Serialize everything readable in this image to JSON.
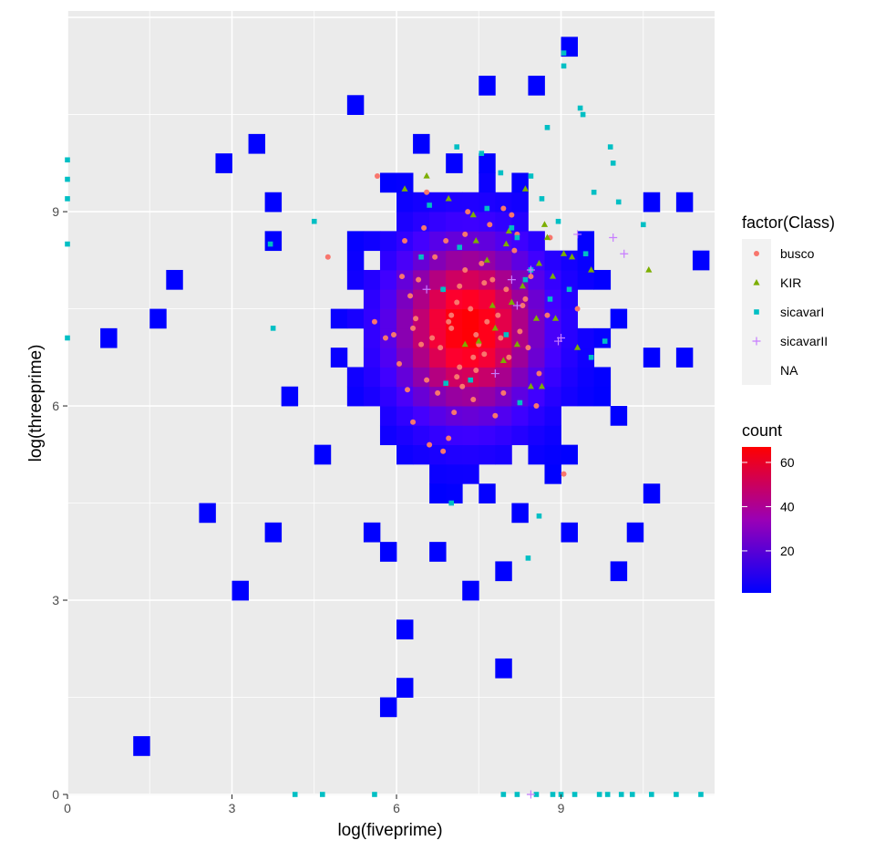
{
  "chart_data": {
    "type": "heatmap",
    "xlabel": "log(fiveprime)",
    "ylabel": "log(threeprime)",
    "xlim": [
      0,
      11.8
    ],
    "ylim": [
      0,
      12.1
    ],
    "x_ticks": [
      0,
      3,
      6,
      9
    ],
    "y_ticks": [
      0,
      3,
      6,
      9
    ],
    "grid": true,
    "panel_background": "#ebebeb",
    "bin_width": 0.3,
    "fill_scale": {
      "title": "count",
      "low_color": "#0000ff",
      "high_color": "#ff0000",
      "min": 1,
      "max": 67,
      "breaks": [
        20,
        40,
        60
      ]
    },
    "density_center": [
      7.3,
      7.2
    ],
    "density_spread": [
      0.95,
      0.95
    ],
    "isolated_bins": [
      [
        0.65,
        7.05
      ],
      [
        1.2,
        0.65
      ],
      [
        1.75,
        7.35
      ],
      [
        1.95,
        7.85
      ],
      [
        2.55,
        4.4
      ],
      [
        3.05,
        3.05
      ],
      [
        2.75,
        9.6
      ],
      [
        3.3,
        9.9
      ],
      [
        3.85,
        4.1
      ],
      [
        4.1,
        6.0
      ],
      [
        4.6,
        5.15
      ],
      [
        5.5,
        4.1
      ],
      [
        5.75,
        1.2
      ],
      [
        5.85,
        3.6
      ],
      [
        6.25,
        2.5
      ],
      [
        6.25,
        1.75
      ],
      [
        5.25,
        10.6
      ],
      [
        6.7,
        3.85
      ],
      [
        7.3,
        3.05
      ],
      [
        7.85,
        3.35
      ],
      [
        7.85,
        2.0
      ],
      [
        9.05,
        4.1
      ],
      [
        9.95,
        3.35
      ],
      [
        10.45,
        4.1
      ],
      [
        10.7,
        4.65
      ],
      [
        10.1,
        5.7
      ],
      [
        10.75,
        6.75
      ],
      [
        11.25,
        6.75
      ],
      [
        11.5,
        8.15
      ],
      [
        11.3,
        9.15
      ],
      [
        10.6,
        9.15
      ],
      [
        7.55,
        11.05
      ],
      [
        8.5,
        10.9
      ],
      [
        9.1,
        11.45
      ],
      [
        6.45,
        10.1
      ],
      [
        3.6,
        9.15
      ],
      [
        3.8,
        8.55
      ],
      [
        5.75,
        5.6
      ],
      [
        6.75,
        4.6
      ],
      [
        8.3,
        4.4
      ]
    ],
    "series": [
      {
        "name": "busco",
        "shape": "circle",
        "color": "#f8766d",
        "x": [
          5.65,
          4.75,
          7.65,
          6.25,
          7.1,
          7.45,
          6.8,
          7.0,
          7.25,
          6.1,
          8.0,
          7.9,
          8.4,
          7.15,
          6.55,
          6.3,
          7.35,
          7.6,
          8.15,
          6.05,
          6.9,
          7.7,
          7.2,
          7.5,
          6.4,
          8.3,
          8.6,
          6.7,
          7.05,
          7.8,
          7.4,
          6.95,
          6.6,
          5.6,
          5.8,
          6.2,
          8.1,
          8.8,
          7.95,
          6.5,
          7.3,
          7.55,
          6.85,
          7.1,
          6.35,
          6.75,
          8.25,
          7.85,
          6.15,
          8.45,
          9.3,
          9.05,
          6.3,
          6.85,
          7.75,
          8.05,
          7.45,
          6.65,
          7.95,
          6.45,
          7.15,
          8.35,
          8.55,
          7.25,
          6.95,
          7.6,
          7.0,
          6.55,
          8.2,
          5.95,
          8.75,
          7.4
        ],
        "y": [
          9.55,
          8.3,
          7.3,
          7.7,
          7.6,
          7.1,
          6.9,
          7.4,
          8.1,
          8.0,
          7.8,
          7.05,
          6.9,
          6.6,
          6.4,
          7.2,
          7.5,
          6.8,
          8.4,
          6.65,
          8.55,
          8.8,
          6.3,
          6.95,
          7.95,
          7.55,
          6.5,
          8.3,
          5.9,
          5.85,
          6.1,
          5.5,
          5.4,
          7.3,
          7.05,
          6.25,
          8.95,
          8.6,
          9.05,
          8.75,
          9.0,
          8.2,
          7.8,
          6.45,
          7.35,
          6.2,
          7.15,
          7.4,
          8.55,
          8.0,
          7.5,
          4.95,
          5.75,
          5.3,
          7.95,
          6.75,
          6.55,
          7.05,
          6.2,
          6.95,
          7.85,
          7.65,
          6.0,
          8.65,
          7.3,
          7.9,
          7.2,
          9.3,
          8.65,
          7.1,
          7.4,
          6.75
        ]
      },
      {
        "name": "KIR",
        "shape": "triangle",
        "color": "#7cae00",
        "x": [
          6.15,
          6.55,
          7.45,
          8.05,
          8.35,
          8.7,
          9.05,
          8.55,
          8.85,
          7.75,
          7.25,
          6.95,
          7.8,
          8.2,
          8.9,
          9.55,
          10.6,
          9.2,
          8.0,
          7.65,
          7.4,
          8.45,
          8.65,
          9.3,
          8.75,
          7.95,
          8.3,
          8.6,
          7.5,
          8.1
        ],
        "y": [
          9.35,
          9.55,
          8.55,
          8.7,
          9.35,
          8.8,
          8.35,
          7.35,
          8.0,
          7.55,
          6.95,
          9.2,
          7.2,
          6.95,
          7.35,
          8.1,
          8.1,
          8.3,
          8.5,
          8.25,
          8.95,
          6.3,
          6.3,
          6.9,
          8.6,
          6.7,
          7.85,
          8.2,
          7.0,
          7.6
        ]
      },
      {
        "name": "sicavarI",
        "shape": "square",
        "color": "#00bfc4",
        "x": [
          0,
          0,
          0,
          0,
          0,
          4.15,
          4.65,
          5.6,
          7.95,
          8.2,
          8.55,
          8.85,
          9.0,
          9.25,
          9.7,
          9.85,
          10.1,
          10.3,
          10.65,
          11.1,
          11.55,
          8.75,
          9.4,
          9.95,
          8.45,
          7.9,
          7.55,
          7.1,
          6.6,
          6.45,
          3.75,
          4.5,
          3.7,
          9.05,
          9.6,
          8.1,
          8.65,
          8.95,
          9.45,
          9.15,
          10.05,
          10.5,
          8.35,
          8.0,
          7.35,
          6.9,
          7.15,
          7.65,
          8.45,
          6.85,
          9.8,
          9.55,
          8.25,
          8.8,
          9.9,
          9.35,
          9.05,
          8.6,
          7.0,
          8.2,
          8.4
        ],
        "y": [
          9.8,
          9.5,
          9.2,
          8.5,
          7.05,
          0,
          0,
          0,
          0,
          0,
          0,
          0,
          0,
          0,
          0,
          0,
          0,
          0,
          0,
          0,
          0,
          10.3,
          10.5,
          9.75,
          9.55,
          9.6,
          9.9,
          10.0,
          9.1,
          8.3,
          7.2,
          8.85,
          8.5,
          11.25,
          9.3,
          8.75,
          9.2,
          8.85,
          8.35,
          7.8,
          9.15,
          8.8,
          7.95,
          7.1,
          6.4,
          6.35,
          8.45,
          9.05,
          8.1,
          7.8,
          7.0,
          6.75,
          6.05,
          7.65,
          10.0,
          10.6,
          11.45,
          4.3,
          4.5,
          8.6,
          3.65
        ]
      },
      {
        "name": "sicavarII",
        "shape": "plus",
        "color": "#c77cff",
        "x": [
          6.55,
          7.8,
          8.1,
          8.2,
          8.45,
          8.95,
          9.3,
          9.95,
          10.15,
          9.0,
          8.45
        ],
        "y": [
          7.8,
          6.5,
          7.95,
          7.55,
          8.1,
          7.0,
          8.65,
          8.6,
          8.35,
          7.05,
          0
        ]
      }
    ],
    "legend": {
      "title": "factor(Class)",
      "entries": [
        "busco",
        "KIR",
        "sicavarI",
        "sicavarII",
        "NA"
      ],
      "placement": "right"
    }
  }
}
